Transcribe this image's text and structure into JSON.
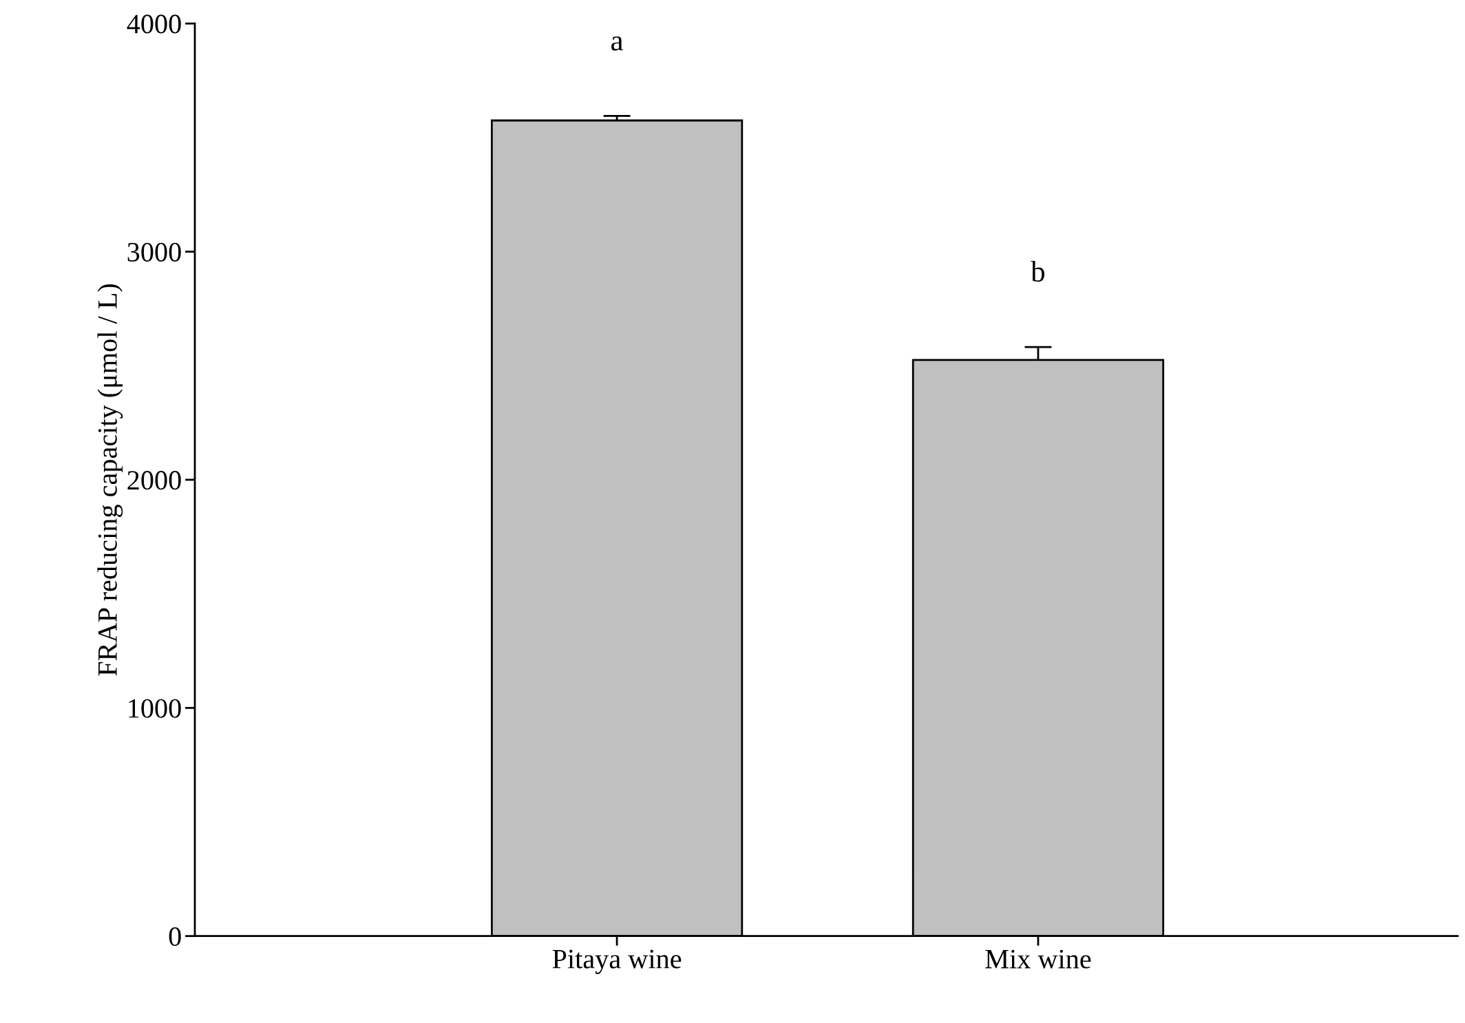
{
  "chart_data": {
    "type": "bar",
    "ylabel": "FRAP reducing capacity (μmol / L)",
    "categories": [
      "Pitaya wine",
      "Mix wine"
    ],
    "values": [
      3575,
      2525
    ],
    "errors": [
      20,
      57
    ],
    "color": "#c0c0c0",
    "ylim": [
      0,
      4000
    ],
    "yticks": [
      0,
      1000,
      2000,
      3000,
      4000
    ],
    "grid": false,
    "annotations": [
      "a",
      "b"
    ]
  }
}
